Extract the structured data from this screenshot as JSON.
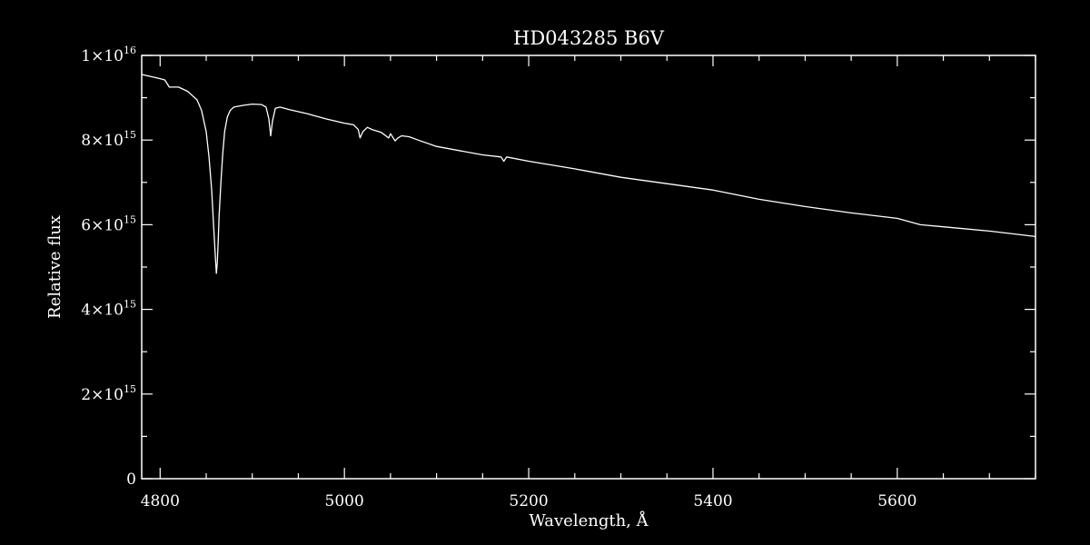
{
  "chart_data": {
    "type": "line",
    "title": "HD043285   B6V",
    "xlabel": "Wavelength, Å",
    "ylabel": "Relative flux",
    "xlim": [
      4780,
      5750
    ],
    "ylim": [
      0,
      1e+16
    ],
    "x_ticks": [
      {
        "value": 4800,
        "label": "4800"
      },
      {
        "value": 5000,
        "label": "5000"
      },
      {
        "value": 5200,
        "label": "5200"
      },
      {
        "value": 5400,
        "label": "5400"
      },
      {
        "value": 5600,
        "label": "5600"
      }
    ],
    "y_ticks": [
      {
        "value": 0,
        "mant": "0",
        "exp": ""
      },
      {
        "value": 2000000000000000.0,
        "mant": "2×10",
        "exp": "15"
      },
      {
        "value": 4000000000000000.0,
        "mant": "4×10",
        "exp": "15"
      },
      {
        "value": 6000000000000000.0,
        "mant": "6×10",
        "exp": "15"
      },
      {
        "value": 8000000000000000.0,
        "mant": "8×10",
        "exp": "15"
      },
      {
        "value": 1e+16,
        "mant": "1×10",
        "exp": "16"
      }
    ],
    "grid": false,
    "colors": {
      "background": "#000000",
      "foreground": "#ffffff"
    },
    "series": [
      {
        "x": [
          4780,
          4790,
          4800,
          4805,
          4810,
          4820,
          4830,
          4835,
          4840,
          4845,
          4850,
          4853,
          4856,
          4858,
          4860,
          4861,
          4862,
          4863,
          4864,
          4866,
          4868,
          4870,
          4873,
          4876,
          4880,
          4890,
          4900,
          4910,
          4915,
          4918,
          4920,
          4922,
          4925,
          4930,
          4940,
          4960,
          4980,
          5000,
          5010,
          5015,
          5017,
          5020,
          5025,
          5030,
          5040,
          5048,
          5050,
          5055,
          5058,
          5062,
          5070,
          5080,
          5100,
          5150,
          5170,
          5173,
          5176,
          5200,
          5250,
          5300,
          5350,
          5400,
          5450,
          5500,
          5550,
          5600,
          5625,
          5650,
          5700,
          5750
        ],
        "y": [
          9550000000000000.0,
          9500000000000000.0,
          9450000000000000.0,
          9420000000000000.0,
          9250000000000000.0,
          9250000000000000.0,
          9150000000000000.0,
          9050000000000000.0,
          8950000000000000.0,
          8700000000000000.0,
          8200000000000000.0,
          7600000000000000.0,
          6800000000000000.0,
          6000000000000000.0,
          5200000000000000.0,
          4850000000000000.0,
          5100000000000000.0,
          5600000000000000.0,
          6200000000000000.0,
          7000000000000000.0,
          7700000000000000.0,
          8200000000000000.0,
          8550000000000000.0,
          8700000000000000.0,
          8780000000000000.0,
          8820000000000000.0,
          8850000000000000.0,
          8840000000000000.0,
          8780000000000000.0,
          8500000000000000.0,
          8100000000000000.0,
          8450000000000000.0,
          8750000000000000.0,
          8780000000000000.0,
          8720000000000000.0,
          8620000000000000.0,
          8500000000000000.0,
          8400000000000000.0,
          8360000000000000.0,
          8250000000000000.0,
          8050000000000000.0,
          8200000000000000.0,
          8300000000000000.0,
          8250000000000000.0,
          8180000000000000.0,
          8050000000000000.0,
          8150000000000000.0,
          7980000000000000.0,
          8050000000000000.0,
          8100000000000000.0,
          8080000000000000.0,
          8000000000000000.0,
          7850000000000000.0,
          7650000000000000.0,
          7600000000000000.0,
          7500000000000000.0,
          7600000000000000.0,
          7500000000000000.0,
          7320000000000000.0,
          7120000000000000.0,
          6970000000000000.0,
          6820000000000000.0,
          6600000000000000.0,
          6430000000000000.0,
          6280000000000000.0,
          6150000000000000.0,
          6000000000000000.0,
          5950000000000000.0,
          5850000000000000.0,
          5720000000000000.0
        ]
      }
    ]
  }
}
